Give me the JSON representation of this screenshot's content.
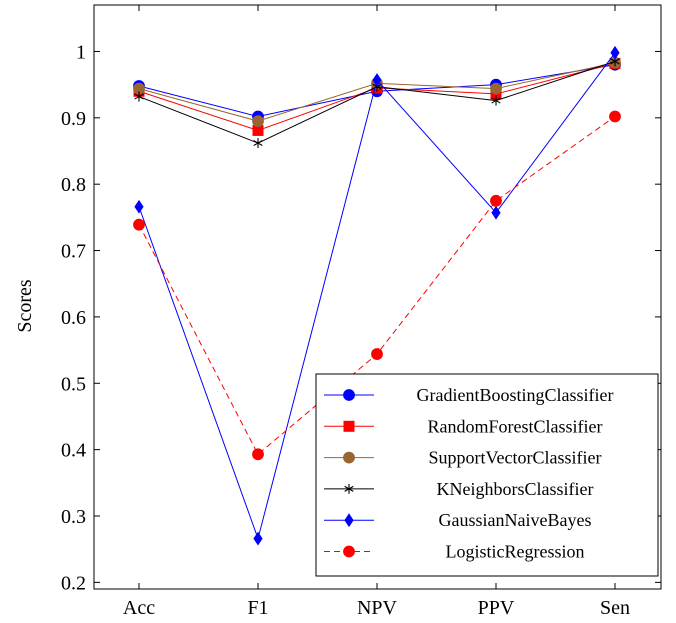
{
  "chart_data": {
    "type": "line",
    "categories": [
      "Acc",
      "F1",
      "NPV",
      "PPV",
      "Sen"
    ],
    "ylabel": "Scores",
    "xlabel": "",
    "ylim": [
      0.19,
      1.07
    ],
    "yticks": [
      0.2,
      0.3,
      0.4,
      0.5,
      0.6,
      0.7,
      0.8,
      0.9,
      1
    ],
    "grid": false,
    "legend_position": "bottom-right",
    "series": [
      {
        "name": "GradientBoostingClassifier",
        "color": "#0000ff",
        "marker": "circle",
        "dash": "solid",
        "values": [
          0.948,
          0.902,
          0.94,
          0.95,
          0.98
        ]
      },
      {
        "name": "RandomForestClassifier",
        "color": "#ff0000",
        "marker": "square",
        "dash": "solid",
        "values": [
          0.94,
          0.881,
          0.945,
          0.936,
          0.982
        ]
      },
      {
        "name": "SupportVectorClassifier",
        "color": "#996633",
        "marker": "circle",
        "dash": "solid",
        "values": [
          0.944,
          0.895,
          0.952,
          0.944,
          0.983
        ]
      },
      {
        "name": "KNeighborsClassifier",
        "color": "#000000",
        "marker": "asterisk",
        "dash": "solid",
        "values": [
          0.932,
          0.862,
          0.947,
          0.926,
          0.985
        ]
      },
      {
        "name": "GaussianNaiveBayes",
        "color": "#0000ff",
        "marker": "diamond",
        "dash": "solid",
        "values": [
          0.766,
          0.266,
          0.957,
          0.757,
          0.998
        ]
      },
      {
        "name": "LogisticRegression",
        "color": "#ff0000",
        "marker": "circle",
        "dash": "dashed",
        "values": [
          0.739,
          0.393,
          0.544,
          0.775,
          0.902
        ]
      }
    ]
  }
}
